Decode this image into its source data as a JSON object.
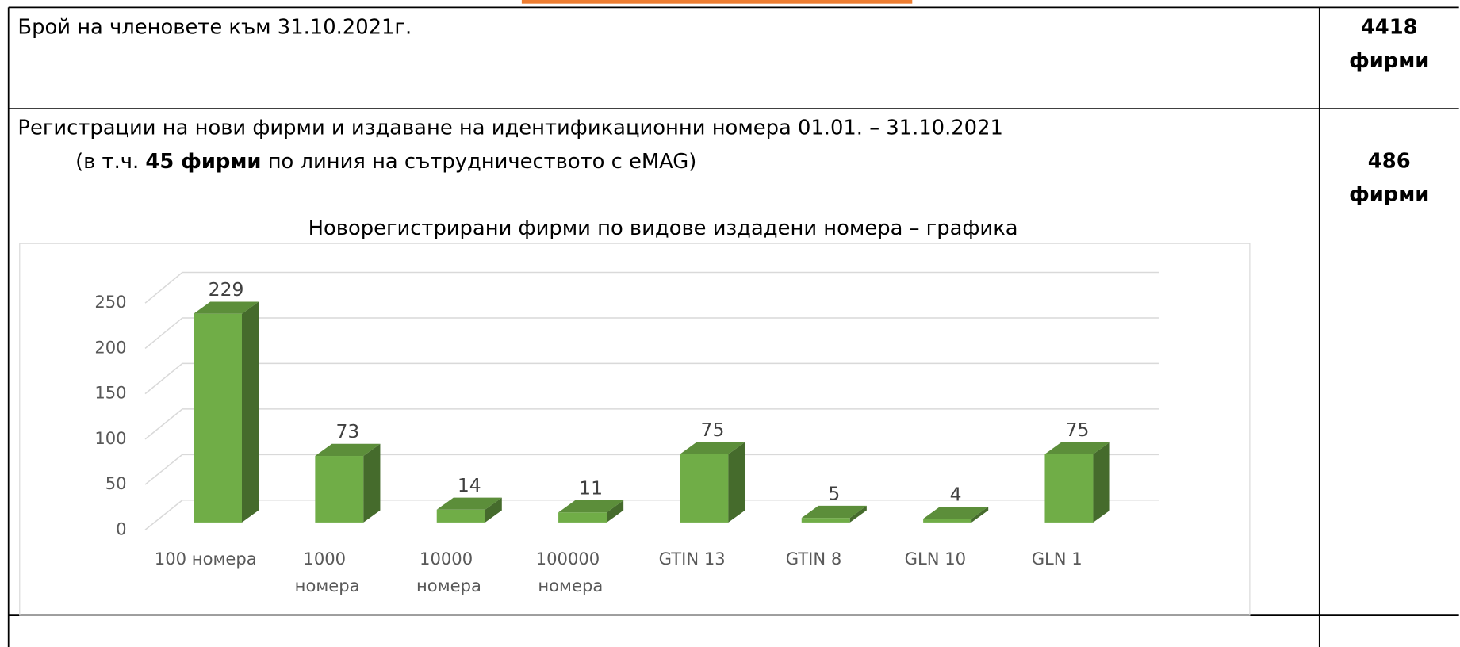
{
  "table": {
    "rows": [
      {
        "label": "Брой на членовете към 31.10.2021г.",
        "value": "4418",
        "unit": "фирми"
      },
      {
        "label": "Регистрации на нови фирми и издаване на идентификационни номера 01.01. – 31.10.2021",
        "note_before": "(в т.ч. ",
        "note_bold": "45 фирми",
        "note_after": " по линия на сътрудничеството с eMAG)",
        "value": "486",
        "unit": "фирми"
      }
    ]
  },
  "chart_data": {
    "type": "bar",
    "title": "Новорегистрирани фирми по видове издадени номера – графика",
    "categories": [
      "100 номера",
      "1000 номера",
      "10000 номера",
      "100000 номера",
      "GTIN 13",
      "GTIN 8",
      "GLN 10",
      "GLN 1"
    ],
    "values": [
      229,
      73,
      14,
      11,
      75,
      5,
      4,
      75
    ],
    "color": "#70ad47",
    "ylim": [
      0,
      250
    ],
    "yticks": [
      0,
      50,
      100,
      150,
      200,
      250
    ],
    "grid": true
  }
}
